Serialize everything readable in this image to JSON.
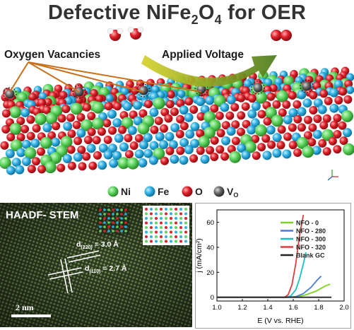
{
  "title": {
    "main": "Defective NiFe",
    "sub": "2",
    "tail": "O",
    "sub2": "4",
    "end": " for OER"
  },
  "labels": {
    "oxygen_vacancies": "Oxygen Vacancies",
    "applied_voltage": "Applied Voltage"
  },
  "legend_atoms": [
    {
      "label": "Ni",
      "color": "#5ed65e"
    },
    {
      "label": "Fe",
      "color": "#2eb1e6"
    },
    {
      "label": "O",
      "color": "#e0202a"
    },
    {
      "label": "V",
      "sub": "O",
      "color": "#6a6a6a"
    }
  ],
  "haadf": {
    "title": "HAADF- STEM",
    "d220_prefix": "d",
    "d220_sub": "(220)",
    "d220_value": " = 3.0 Å",
    "d110_prefix": "d",
    "d110_sub": "(110)",
    "d110_value": " = 2.7 Å",
    "scale_bar": "2 nm"
  },
  "chart_data": {
    "type": "line",
    "xlabel": "E (V vs. RHE)",
    "ylabel": "j (mA/cm²)",
    "xlim": [
      1.0,
      2.0
    ],
    "ylim": [
      -3,
      70
    ],
    "xticks": [
      1.0,
      1.2,
      1.4,
      1.6,
      1.8,
      2.0
    ],
    "yticks": [
      0,
      20,
      40,
      60
    ],
    "legend_position": "top-right",
    "series": [
      {
        "name": "NFO - 0",
        "color": "#7ed321",
        "x": [
          1.0,
          1.55,
          1.62,
          1.7,
          1.78,
          1.85,
          1.89
        ],
        "y": [
          0,
          0,
          0.3,
          2,
          5,
          9,
          10.5
        ]
      },
      {
        "name": "NFO - 280",
        "color": "#4a7fd1",
        "x": [
          1.0,
          1.55,
          1.62,
          1.68,
          1.74,
          1.79,
          1.82
        ],
        "y": [
          0,
          0,
          0.5,
          3,
          8,
          14,
          17
        ]
      },
      {
        "name": "NFO - 300",
        "color": "#19c2c2",
        "x": [
          1.0,
          1.54,
          1.58,
          1.62,
          1.65,
          1.68,
          1.7
        ],
        "y": [
          0,
          0,
          1,
          6,
          15,
          27,
          36
        ]
      },
      {
        "name": "NFO - 320",
        "color": "#e23b3b",
        "x": [
          1.0,
          1.53,
          1.56,
          1.59,
          1.62,
          1.65,
          1.68
        ],
        "y": [
          0,
          0,
          2,
          10,
          27,
          50,
          66
        ]
      },
      {
        "name": "Blank GC",
        "color": "#222222",
        "x": [
          1.0,
          1.9
        ],
        "y": [
          0,
          0
        ]
      }
    ]
  }
}
